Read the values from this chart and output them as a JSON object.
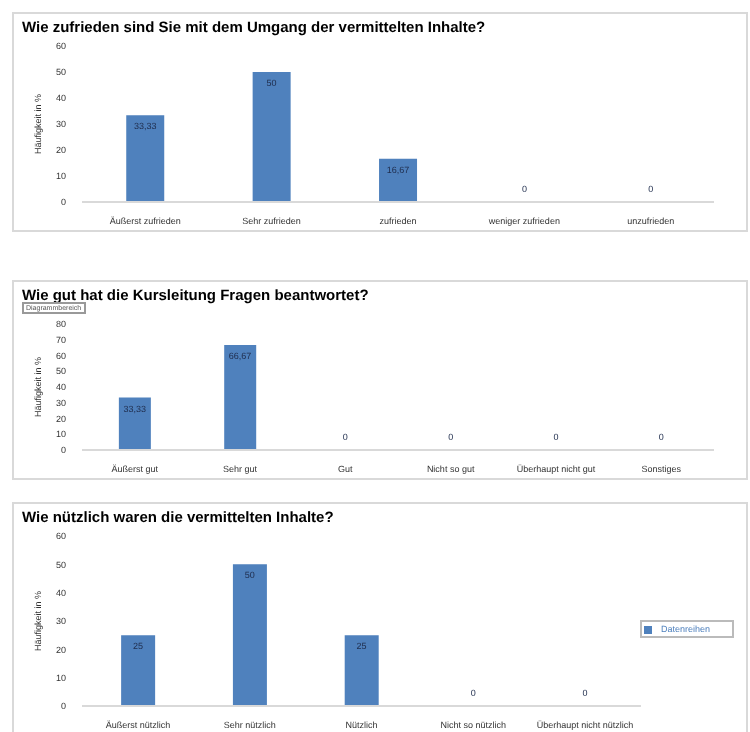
{
  "chart_data": [
    {
      "type": "bar",
      "title": "Wie zufrieden sind Sie mit dem Umgang der vermittelten Inhalte?",
      "ylabel": "Häufigkeit in %",
      "categories": [
        "Äußerst zufrieden",
        "Sehr zufrieden",
        "zufrieden",
        "weniger zufrieden",
        "unzufrieden"
      ],
      "series": [
        {
          "color": "#4f81bd",
          "values": [
            33.33,
            50,
            16.67,
            0,
            0
          ],
          "value_labels": [
            "33,33",
            "50",
            "16,67",
            "0",
            "0"
          ]
        }
      ],
      "ylim": [
        0,
        60
      ],
      "yticks": [
        0,
        10,
        20,
        30,
        40,
        50,
        60
      ],
      "grid": false,
      "legend": false
    },
    {
      "type": "bar",
      "title": "Wie gut hat die Kursleitung Fragen beantwortet?",
      "ylabel": "Häufigkeit in %",
      "annotations": [
        "Diagrammbereich"
      ],
      "categories": [
        "Äußerst gut",
        "Sehr gut",
        "Gut",
        "Nicht so gut",
        "Überhaupt nicht gut",
        "Sonstiges"
      ],
      "series": [
        {
          "color": "#4f81bd",
          "values": [
            33.33,
            66.67,
            0,
            0,
            0,
            0
          ],
          "value_labels": [
            "33,33",
            "66,67",
            "0",
            "0",
            "0",
            "0"
          ]
        }
      ],
      "ylim": [
        0,
        80
      ],
      "yticks": [
        0,
        10,
        20,
        30,
        40,
        50,
        60,
        70,
        80
      ],
      "grid": false,
      "legend": false
    },
    {
      "type": "bar",
      "title": "Wie nützlich waren die vermittelten Inhalte?",
      "ylabel": "Häufigkeit in %",
      "categories": [
        "Äußerst nützlich",
        "Sehr nützlich",
        "Nützlich",
        "Nicht so nützlich",
        "Überhaupt nicht nützlich"
      ],
      "series": [
        {
          "name": "Datenreihen",
          "color": "#4f81bd",
          "values": [
            25,
            50,
            25,
            0,
            0
          ],
          "value_labels": [
            "25",
            "50",
            "25",
            "0",
            "0"
          ]
        }
      ],
      "ylim": [
        0,
        60
      ],
      "yticks": [
        0,
        10,
        20,
        30,
        40,
        50,
        60
      ],
      "grid": false,
      "legend": "right"
    }
  ]
}
